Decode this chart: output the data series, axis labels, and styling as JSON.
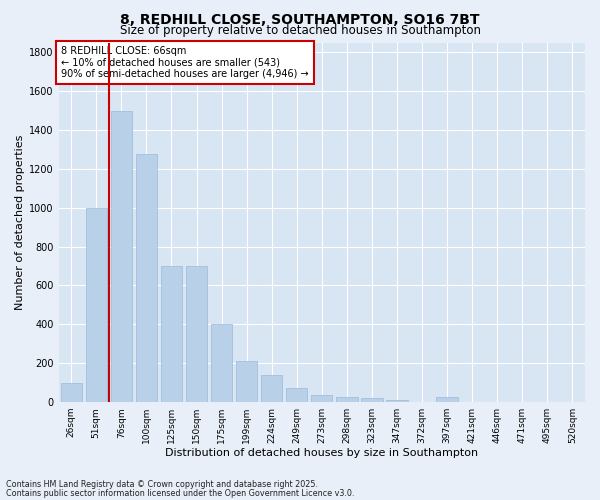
{
  "title1": "8, REDHILL CLOSE, SOUTHAMPTON, SO16 7BT",
  "title2": "Size of property relative to detached houses in Southampton",
  "xlabel": "Distribution of detached houses by size in Southampton",
  "ylabel": "Number of detached properties",
  "categories": [
    "26sqm",
    "51sqm",
    "76sqm",
    "100sqm",
    "125sqm",
    "150sqm",
    "175sqm",
    "199sqm",
    "224sqm",
    "249sqm",
    "273sqm",
    "298sqm",
    "323sqm",
    "347sqm",
    "372sqm",
    "397sqm",
    "421sqm",
    "446sqm",
    "471sqm",
    "495sqm",
    "520sqm"
  ],
  "values": [
    100,
    1000,
    1500,
    1275,
    700,
    700,
    400,
    210,
    140,
    75,
    35,
    25,
    20,
    10,
    0,
    25,
    0,
    0,
    0,
    0,
    0
  ],
  "bar_color": "#b8d0e8",
  "bar_edge_color": "#9bbad8",
  "vline_color": "#cc0000",
  "vline_x": 1.5,
  "annotation_title": "8 REDHILL CLOSE: 66sqm",
  "annotation_line1": "← 10% of detached houses are smaller (543)",
  "annotation_line2": "90% of semi-detached houses are larger (4,946) →",
  "annotation_box_color": "#cc0000",
  "ylim": [
    0,
    1850
  ],
  "yticks": [
    0,
    200,
    400,
    600,
    800,
    1000,
    1200,
    1400,
    1600,
    1800
  ],
  "footer1": "Contains HM Land Registry data © Crown copyright and database right 2025.",
  "footer2": "Contains public sector information licensed under the Open Government Licence v3.0.",
  "bg_color": "#e8eff8",
  "plot_bg_color": "#d8e5f3",
  "grid_color": "#ffffff",
  "title1_fontsize": 10,
  "title2_fontsize": 8.5,
  "tick_fontsize": 6.5,
  "label_fontsize": 8,
  "ann_fontsize": 7,
  "footer_fontsize": 5.8
}
